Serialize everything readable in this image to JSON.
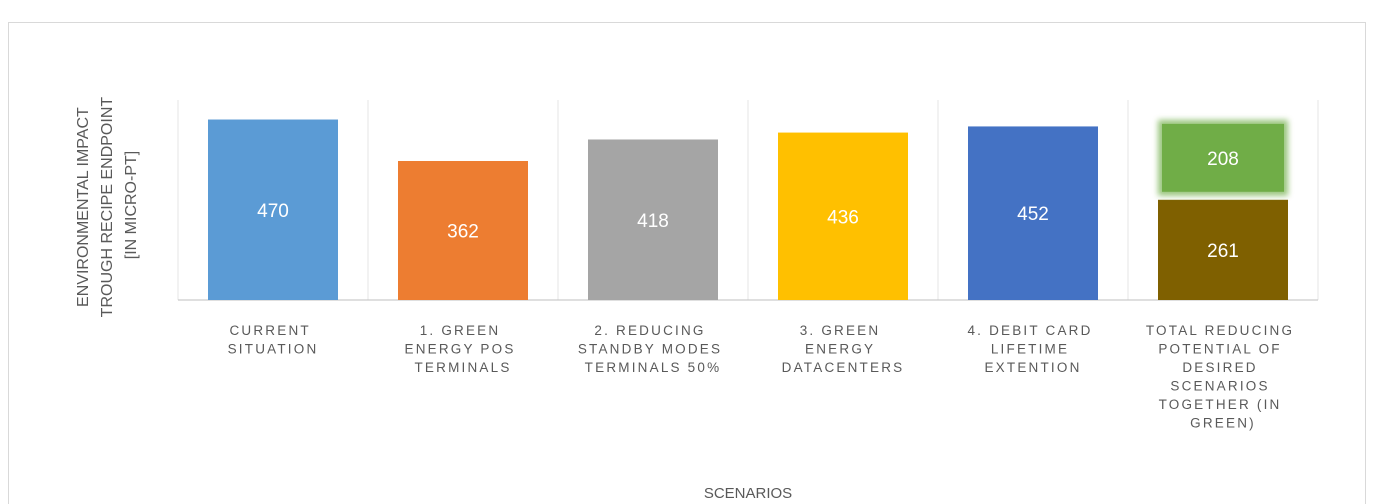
{
  "chart_data": {
    "type": "bar",
    "y_label": "ENVIRONMENTAL IMPACT TROUGH RECIPE ENDPOINT [IN MICRO-PT]",
    "x_label": "SCENARIOS",
    "categories": [
      "CURRENT SITUATION",
      "1. GREEN ENERGY POS TERMINALS",
      "2. REDUCING STANDBY MODES TERMINALS 50%",
      "3. GREEN ENERGY DATACENTERS",
      "4. DEBIT CARD LIFETIME EXTENTION",
      "TOTAL REDUCING POTENTIAL OF DESIRED SCENARIOS TOGETHER (IN GREEN)"
    ],
    "values": [
      470,
      362,
      418,
      436,
      452,
      261
    ],
    "colors": [
      "#5b9bd5",
      "#ed7d31",
      "#a5a5a5",
      "#ffc000",
      "#4472c4",
      "#7f6000"
    ],
    "stack_values": [
      null,
      null,
      null,
      null,
      null,
      208
    ],
    "stack_color": "#70ad47",
    "ylim": [
      0,
      500
    ]
  }
}
